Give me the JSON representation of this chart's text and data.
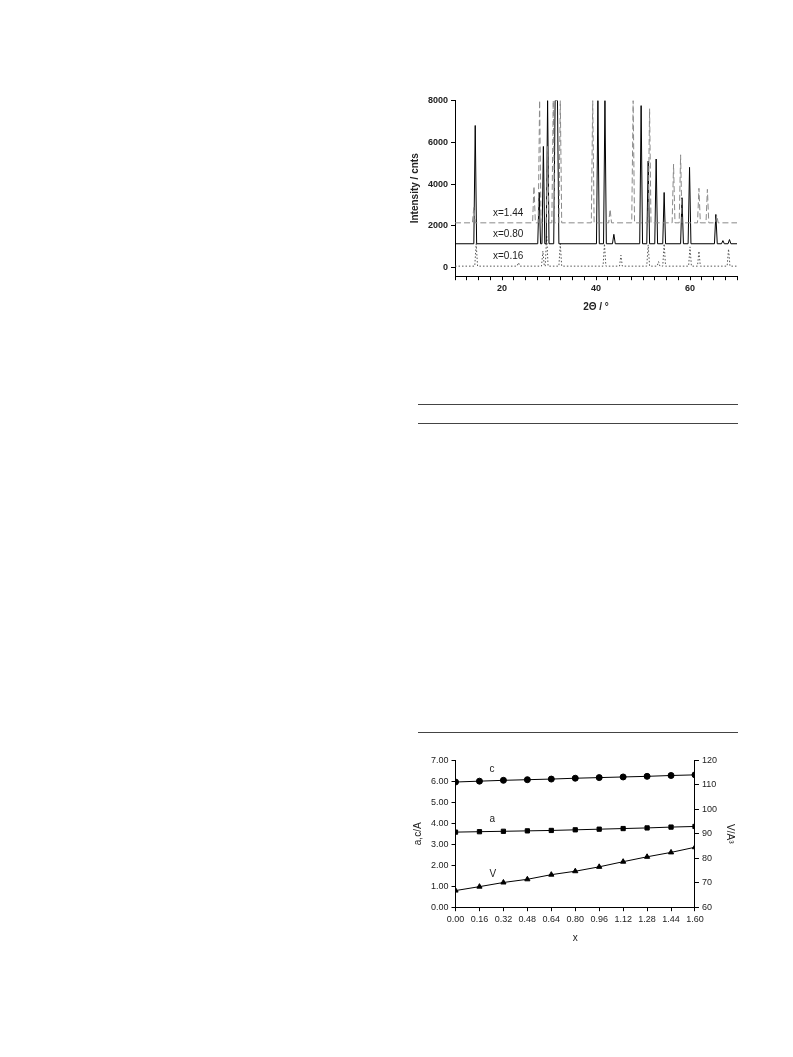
{
  "chart_data": [
    {
      "type": "line",
      "xlabel": "2Θ / °",
      "ylabel": "Intensity / cnts",
      "xlim": [
        10,
        70
      ],
      "ylim": [
        -400,
        8000
      ],
      "xticks": [
        {
          "value": 10,
          "label": null
        },
        {
          "value": 12.5,
          "label": null
        },
        {
          "value": 15,
          "label": null
        },
        {
          "value": 17.5,
          "label": null
        },
        20,
        {
          "value": 22.5,
          "label": null
        },
        {
          "value": 25,
          "label": null
        },
        {
          "value": 27.5,
          "label": null
        },
        {
          "value": 30,
          "label": null
        },
        {
          "value": 32.5,
          "label": null
        },
        {
          "value": 35,
          "label": null
        },
        {
          "value": 37.5,
          "label": null
        },
        40,
        {
          "value": 42.5,
          "label": null
        },
        {
          "value": 45,
          "label": null
        },
        {
          "value": 47.5,
          "label": null
        },
        {
          "value": 50,
          "label": null
        },
        {
          "value": 52.5,
          "label": null
        },
        {
          "value": 55,
          "label": null
        },
        {
          "value": 57.5,
          "label": null
        },
        60,
        {
          "value": 62.5,
          "label": null
        },
        {
          "value": 65,
          "label": null
        },
        {
          "value": 67.5,
          "label": null
        },
        {
          "value": 70,
          "label": null
        }
      ],
      "yticks": [
        0,
        2000,
        4000,
        6000,
        8000
      ],
      "grid": false,
      "legend": false,
      "marker": "none",
      "series": [
        {
          "name": "x=1.44",
          "color": "#8a8a8a",
          "line_style": "dashed",
          "x": [
            10,
            13.7,
            14.0,
            14.3,
            26.5,
            26.8,
            27.1,
            27.7,
            28.0,
            28.3,
            29.4,
            29.7,
            30.0,
            30.6,
            30.9,
            31.2,
            32.1,
            32.4,
            32.7,
            39.0,
            39.3,
            39.6,
            42.7,
            43.0,
            43.3,
            47.6,
            47.9,
            48.2,
            51.1,
            51.4,
            51.7,
            56.2,
            56.5,
            56.8,
            57.7,
            58.0,
            58.3,
            61.6,
            61.9,
            62.2,
            63.4,
            63.7,
            64.0,
            65.4,
            65.7,
            66.0,
            70
          ],
          "values": [
            2150,
            2150,
            2900,
            2150,
            2150,
            3900,
            2150,
            2150,
            8000,
            2150,
            2150,
            5800,
            2150,
            2150,
            8000,
            2150,
            2150,
            8000,
            2150,
            2150,
            8000,
            2150,
            2150,
            2800,
            2150,
            2150,
            8000,
            2150,
            2150,
            7600,
            2150,
            2150,
            4950,
            2150,
            2150,
            5400,
            2150,
            2150,
            3800,
            2150,
            2150,
            3750,
            2150,
            2150,
            2500,
            2150,
            2150
          ]
        },
        {
          "name": "x=0.80",
          "color": "#000000",
          "line_style": "solid",
          "x": [
            10,
            14.0,
            14.3,
            14.6,
            27.6,
            27.9,
            28.2,
            28.5,
            28.8,
            29.1,
            29.4,
            29.7,
            30.0,
            31.0,
            31.3,
            31.6,
            31.8,
            32.1,
            40.1,
            40.4,
            40.7,
            41.6,
            41.9,
            42.2,
            43.5,
            43.8,
            44.1,
            49.3,
            49.6,
            49.9,
            50.8,
            51.1,
            51.4,
            52.5,
            52.8,
            53.1,
            54.2,
            54.5,
            54.8,
            58.0,
            58.3,
            58.6,
            59.6,
            59.9,
            60.2,
            65.2,
            65.5,
            65.8,
            66.7,
            67.0,
            67.3,
            68.1,
            68.4,
            68.7,
            70
          ],
          "values": [
            1150,
            1150,
            6800,
            1150,
            1150,
            3600,
            1150,
            1150,
            5800,
            1150,
            1150,
            8000,
            1150,
            1150,
            8000,
            8000,
            8000,
            1150,
            1150,
            8000,
            1150,
            1150,
            8000,
            1150,
            1150,
            1600,
            1150,
            1150,
            7750,
            1150,
            1150,
            5100,
            1150,
            1150,
            5200,
            1150,
            1150,
            3600,
            1150,
            1150,
            3350,
            1150,
            1150,
            4800,
            1150,
            1150,
            2550,
            1150,
            1150,
            1300,
            1150,
            1150,
            1350,
            1150,
            1150
          ]
        },
        {
          "name": "x=0.16",
          "color": "#555555",
          "line_style": "dotted",
          "x": [
            10,
            14.2,
            14.5,
            14.8,
            23.2,
            23.5,
            23.8,
            28.4,
            28.7,
            29.0,
            29.2,
            29.5,
            29.8,
            32.1,
            32.4,
            32.7,
            41.5,
            41.8,
            42.1,
            45.0,
            45.3,
            45.6,
            50.8,
            51.1,
            51.4,
            53.0,
            53.3,
            53.6,
            54.2,
            54.5,
            54.8,
            59.7,
            60.0,
            60.3,
            61.6,
            61.9,
            62.2,
            67.9,
            68.2,
            68.5,
            70
          ],
          "values": [
            80,
            80,
            1150,
            80,
            80,
            250,
            80,
            80,
            800,
            80,
            80,
            1550,
            80,
            80,
            1150,
            80,
            80,
            1150,
            80,
            80,
            600,
            80,
            80,
            1100,
            80,
            80,
            300,
            80,
            80,
            1150,
            80,
            80,
            1000,
            80,
            80,
            800,
            80,
            80,
            900,
            80,
            80
          ]
        }
      ]
    },
    {
      "type": "line",
      "xlabel": "x",
      "ylabel": "a,c/A",
      "y2label": "V/A³",
      "xlim": [
        0,
        1.6
      ],
      "ylim": [
        0,
        7
      ],
      "y2lim": [
        60,
        120
      ],
      "xticks": [
        {
          "value": 0,
          "label": "0.00"
        },
        {
          "value": 0.16,
          "label": "0.16"
        },
        {
          "value": 0.32,
          "label": "0.32"
        },
        {
          "value": 0.48,
          "label": "0.48"
        },
        {
          "value": 0.64,
          "label": "0.64"
        },
        {
          "value": 0.8,
          "label": "0.80"
        },
        {
          "value": 0.96,
          "label": "0.96"
        },
        {
          "value": 1.12,
          "label": "1.12"
        },
        {
          "value": 1.28,
          "label": "1.28"
        },
        {
          "value": 1.44,
          "label": "1.44"
        },
        {
          "value": 1.6,
          "label": "1.60"
        }
      ],
      "yticks": [
        {
          "value": 0,
          "label": "0.00"
        },
        {
          "value": 1,
          "label": "1.00"
        },
        {
          "value": 2,
          "label": "2.00"
        },
        {
          "value": 3,
          "label": "3.00"
        },
        {
          "value": 4,
          "label": "4.00"
        },
        {
          "value": 5,
          "label": "5.00"
        },
        {
          "value": 6,
          "label": "6.00"
        },
        {
          "value": 7,
          "label": "7.00"
        }
      ],
      "y2ticks": [
        60,
        70,
        80,
        90,
        100,
        110,
        120
      ],
      "grid": false,
      "legend": false,
      "line_style": "solid",
      "x": [
        0,
        0.16,
        0.32,
        0.48,
        0.64,
        0.8,
        0.96,
        1.12,
        1.28,
        1.44,
        1.6
      ],
      "series": [
        {
          "name": "c",
          "color": "#000000",
          "marker": "circle",
          "values": [
            5.97,
            6.01,
            6.05,
            6.08,
            6.11,
            6.15,
            6.18,
            6.21,
            6.24,
            6.28,
            6.31
          ]
        },
        {
          "name": "a",
          "color": "#000000",
          "marker": "square",
          "values": [
            3.58,
            3.6,
            3.62,
            3.64,
            3.66,
            3.69,
            3.72,
            3.75,
            3.78,
            3.82,
            3.85
          ]
        },
        {
          "name": "V",
          "color": "#000000",
          "marker": "triangle",
          "axis": "y2",
          "values": [
            66.8,
            68.4,
            70.1,
            71.4,
            73.3,
            74.7,
            76.5,
            78.6,
            80.6,
            82.4,
            84.5
          ]
        }
      ]
    }
  ]
}
